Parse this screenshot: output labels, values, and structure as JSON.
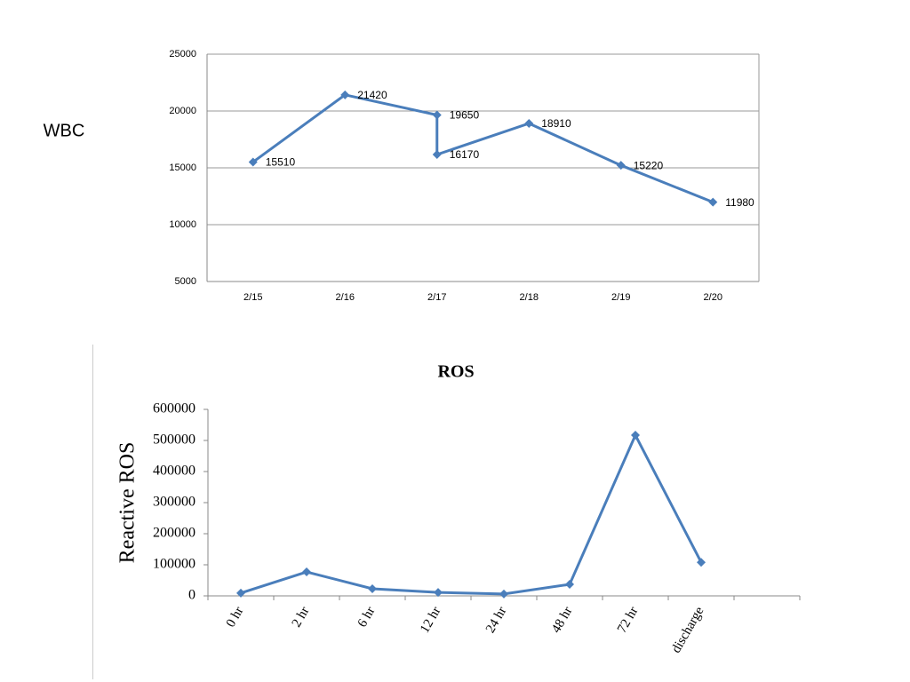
{
  "chart_data": [
    {
      "type": "line",
      "y_label": "WBC",
      "x": [
        15,
        16,
        17,
        17,
        18,
        19,
        20
      ],
      "xlim": [
        14.5,
        20.5
      ],
      "xticks": [
        {
          "value": 15,
          "label": "2/15"
        },
        {
          "value": 16,
          "label": "2/16"
        },
        {
          "value": 17,
          "label": "2/17"
        },
        {
          "value": 18,
          "label": "2/18"
        },
        {
          "value": 19,
          "label": "2/19"
        },
        {
          "value": 20,
          "label": "2/20"
        }
      ],
      "series": [
        {
          "color": "#4a7ebb",
          "values": [
            15510,
            21420,
            19650,
            16170,
            18910,
            15220,
            11980
          ]
        }
      ],
      "ylim": [
        5000,
        25000
      ],
      "yticks": [
        5000,
        10000,
        15000,
        20000,
        25000
      ],
      "grid": true,
      "data_labels": true
    },
    {
      "type": "line",
      "title": "ROS",
      "y_label": "Reactive ROS",
      "categories": [
        "0 hr",
        "2 hr",
        "6 hr",
        "12 hr",
        "24 hr",
        "48 hr",
        "72 hr",
        "discharge",
        null
      ],
      "series": [
        {
          "color": "#4a7ebb",
          "values": [
            9000,
            77000,
            23000,
            11000,
            6000,
            37000,
            517000,
            108000,
            null
          ]
        }
      ],
      "ylim": [
        0,
        600000
      ],
      "yticks": [
        0,
        100000,
        200000,
        300000,
        400000,
        500000,
        600000
      ],
      "grid": false,
      "data_labels": false
    }
  ]
}
